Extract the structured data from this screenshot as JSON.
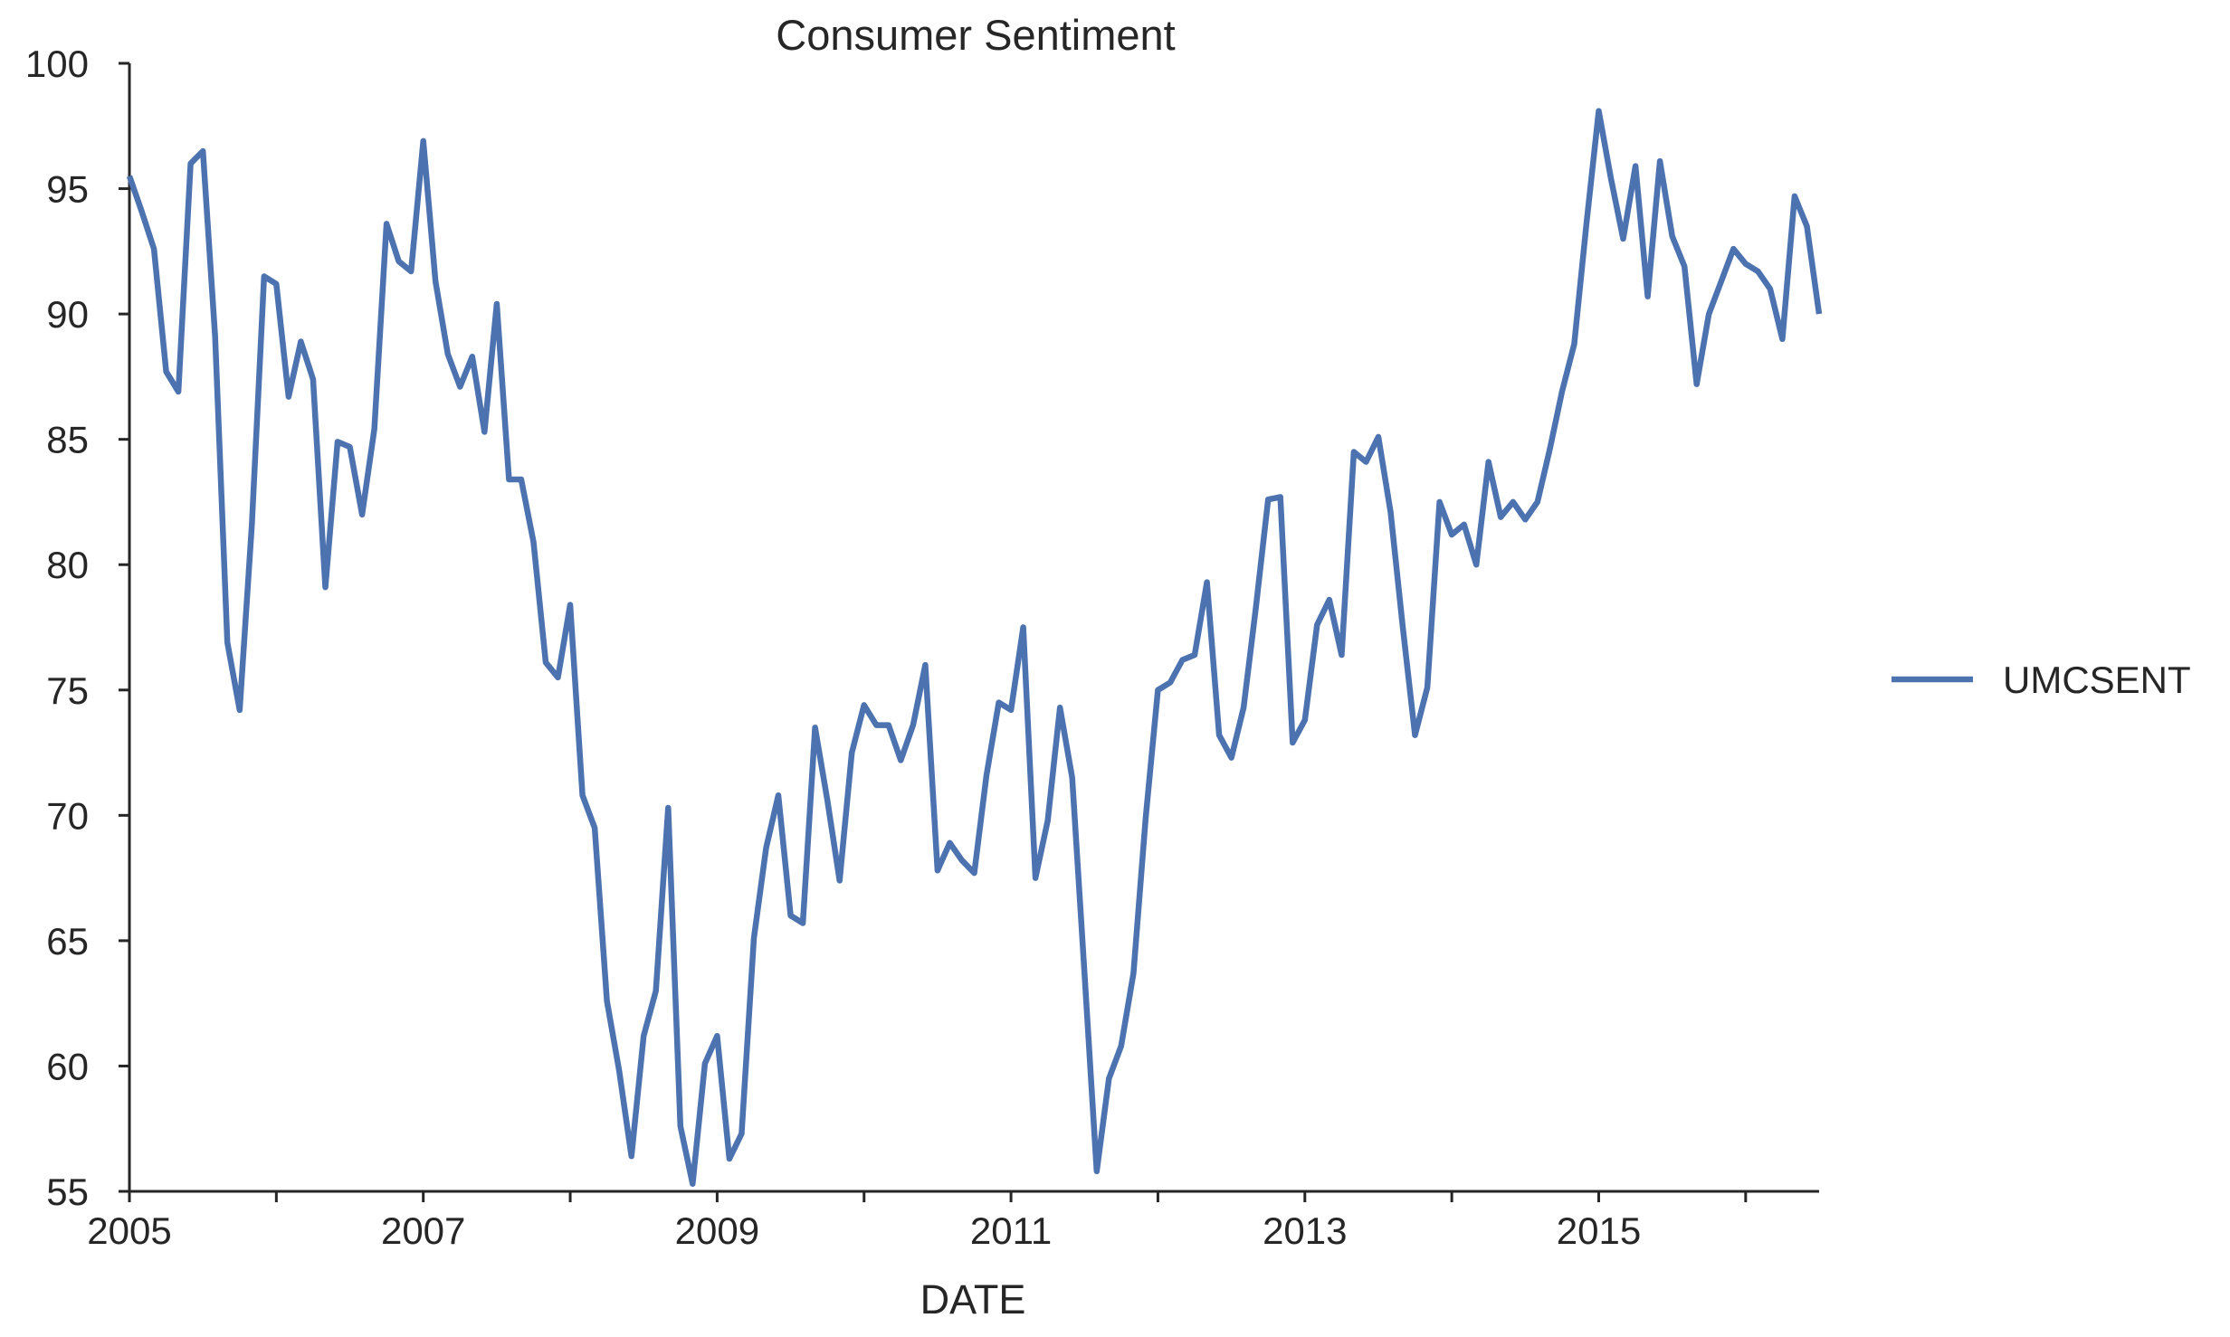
{
  "chart_data": {
    "type": "line",
    "title": "Consumer Sentiment",
    "xlabel": "DATE",
    "ylabel": "",
    "ylim": [
      55,
      100
    ],
    "xlim": [
      "2005-01",
      "2016-07"
    ],
    "yticks": [
      "55",
      "60",
      "65",
      "70",
      "75",
      "80",
      "85",
      "90",
      "95",
      "100"
    ],
    "xticks": [
      {
        "label": "2005",
        "date": "2005-01"
      },
      {
        "label": "2007",
        "date": "2007-01"
      },
      {
        "label": "2009",
        "date": "2009-01"
      },
      {
        "label": "2011",
        "date": "2011-01"
      },
      {
        "label": "2013",
        "date": "2013-01"
      },
      {
        "label": "2015",
        "date": "2015-01"
      }
    ],
    "grid": false,
    "legend_position": "right",
    "series": [
      {
        "name": "UMCSENT",
        "color": "#4c72b0",
        "x": [
          "2005-01",
          "2005-02",
          "2005-03",
          "2005-04",
          "2005-05",
          "2005-06",
          "2005-07",
          "2005-08",
          "2005-09",
          "2005-10",
          "2005-11",
          "2005-12",
          "2006-01",
          "2006-02",
          "2006-03",
          "2006-04",
          "2006-05",
          "2006-06",
          "2006-07",
          "2006-08",
          "2006-09",
          "2006-10",
          "2006-11",
          "2006-12",
          "2007-01",
          "2007-02",
          "2007-03",
          "2007-04",
          "2007-05",
          "2007-06",
          "2007-07",
          "2007-08",
          "2007-09",
          "2007-10",
          "2007-11",
          "2007-12",
          "2008-01",
          "2008-02",
          "2008-03",
          "2008-04",
          "2008-05",
          "2008-06",
          "2008-07",
          "2008-08",
          "2008-09",
          "2008-10",
          "2008-11",
          "2008-12",
          "2009-01",
          "2009-02",
          "2009-03",
          "2009-04",
          "2009-05",
          "2009-06",
          "2009-07",
          "2009-08",
          "2009-09",
          "2009-10",
          "2009-11",
          "2009-12",
          "2010-01",
          "2010-02",
          "2010-03",
          "2010-04",
          "2010-05",
          "2010-06",
          "2010-07",
          "2010-08",
          "2010-09",
          "2010-10",
          "2010-11",
          "2010-12",
          "2011-01",
          "2011-02",
          "2011-03",
          "2011-04",
          "2011-05",
          "2011-06",
          "2011-07",
          "2011-08",
          "2011-09",
          "2011-10",
          "2011-11",
          "2011-12",
          "2012-01",
          "2012-02",
          "2012-03",
          "2012-04",
          "2012-05",
          "2012-06",
          "2012-07",
          "2012-08",
          "2012-09",
          "2012-10",
          "2012-11",
          "2012-12",
          "2013-01",
          "2013-02",
          "2013-03",
          "2013-04",
          "2013-05",
          "2013-06",
          "2013-07",
          "2013-08",
          "2013-09",
          "2013-10",
          "2013-11",
          "2013-12",
          "2014-01",
          "2014-02",
          "2014-03",
          "2014-04",
          "2014-05",
          "2014-06",
          "2014-07",
          "2014-08",
          "2014-09",
          "2014-10",
          "2014-11",
          "2014-12",
          "2015-01",
          "2015-02",
          "2015-03",
          "2015-04",
          "2015-05",
          "2015-06",
          "2015-07",
          "2015-08",
          "2015-09",
          "2015-10",
          "2015-11",
          "2015-12",
          "2016-01",
          "2016-02",
          "2016-03",
          "2016-04",
          "2016-05",
          "2016-06",
          "2016-07"
        ],
        "values": [
          95.5,
          94.1,
          92.6,
          87.7,
          86.9,
          96.0,
          96.5,
          89.1,
          76.9,
          74.2,
          81.6,
          91.5,
          91.2,
          86.7,
          88.9,
          87.4,
          79.1,
          84.9,
          84.7,
          82.0,
          85.4,
          93.6,
          92.1,
          91.7,
          96.9,
          91.3,
          88.4,
          87.1,
          88.3,
          85.3,
          90.4,
          83.4,
          83.4,
          80.9,
          76.1,
          75.5,
          78.4,
          70.8,
          69.5,
          62.6,
          59.8,
          56.4,
          61.2,
          63.0,
          70.3,
          57.6,
          55.3,
          60.1,
          61.2,
          56.3,
          57.3,
          65.1,
          68.7,
          70.8,
          66.0,
          65.7,
          73.5,
          70.6,
          67.4,
          72.5,
          74.4,
          73.6,
          73.6,
          72.2,
          73.6,
          76.0,
          67.8,
          68.9,
          68.2,
          67.7,
          71.6,
          74.5,
          74.2,
          77.5,
          67.5,
          69.8,
          74.3,
          71.5,
          63.7,
          55.8,
          59.5,
          60.8,
          63.7,
          69.9,
          75.0,
          75.3,
          76.2,
          76.4,
          79.3,
          73.2,
          72.3,
          74.3,
          78.3,
          82.6,
          82.7,
          72.9,
          73.8,
          77.6,
          78.6,
          76.4,
          84.5,
          84.1,
          85.1,
          82.1,
          77.5,
          73.2,
          75.1,
          82.5,
          81.2,
          81.6,
          80.0,
          84.1,
          81.9,
          82.5,
          81.8,
          82.5,
          84.6,
          86.9,
          88.8,
          93.6,
          98.1,
          95.4,
          93.0,
          95.9,
          90.7,
          96.1,
          93.1,
          91.9,
          87.2,
          90.0,
          91.3,
          92.6,
          92.0,
          91.7,
          91.0,
          89.0,
          94.7,
          93.5,
          90.0
        ]
      }
    ]
  }
}
